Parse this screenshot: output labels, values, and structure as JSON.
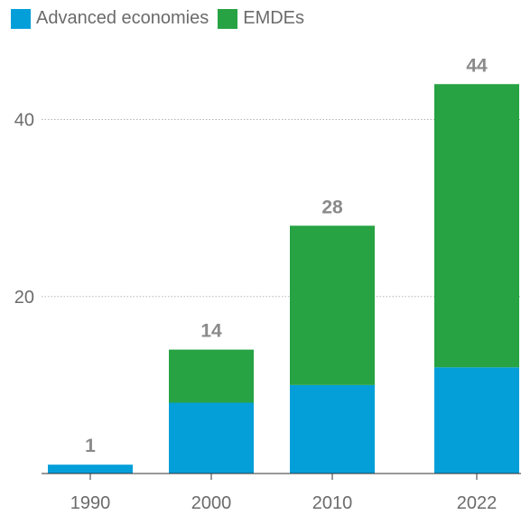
{
  "colors": {
    "advanced": "#049fd9",
    "emdes": "#27a343",
    "grid": "#b5b5b5",
    "axis": "#333333",
    "text": "#6b6b6b",
    "total": "#8a8a8a"
  },
  "chart_data": {
    "type": "bar",
    "stacked": true,
    "title": "",
    "xlabel": "",
    "ylabel": "",
    "categories": [
      "1990",
      "2000",
      "2010",
      "2022"
    ],
    "series": [
      {
        "name": "Advanced economies",
        "values": [
          1,
          8,
          10,
          12
        ]
      },
      {
        "name": "EMDEs",
        "values": [
          0,
          6,
          18,
          32
        ]
      }
    ],
    "totals": [
      "1",
      "14",
      "28",
      "44"
    ],
    "yticks": [
      20,
      40
    ],
    "ylim": [
      0,
      48
    ],
    "grid": true,
    "legend": "top-left"
  }
}
